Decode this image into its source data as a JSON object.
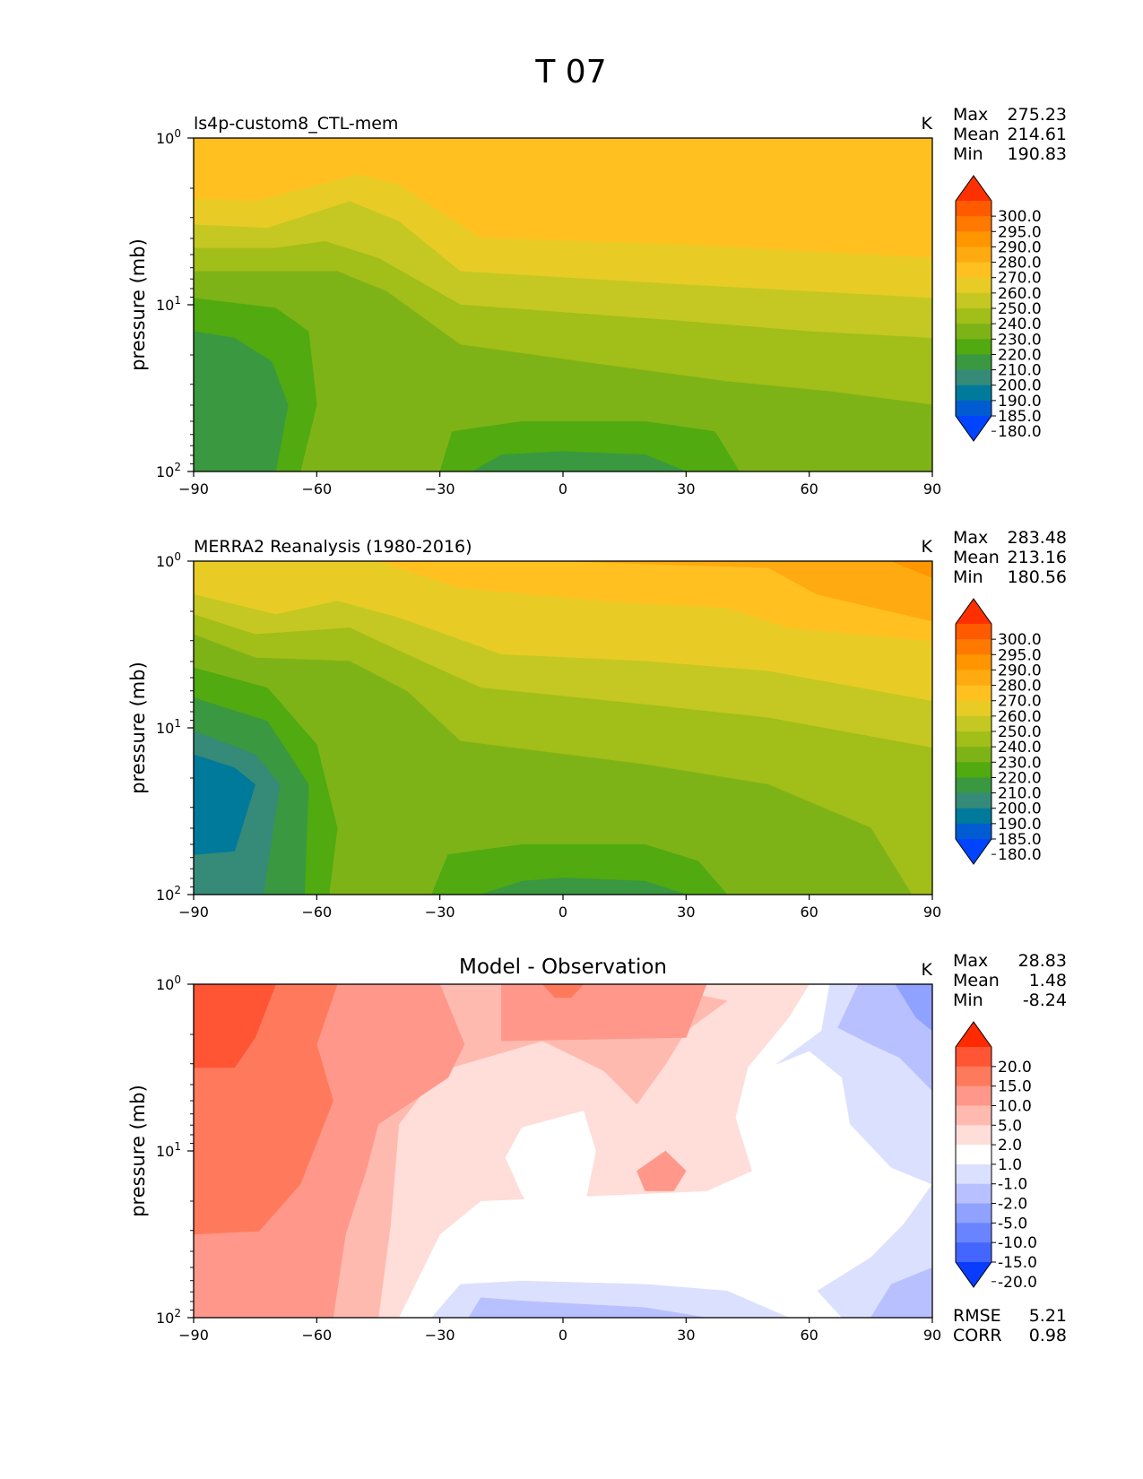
{
  "figure": {
    "title": "T 07"
  },
  "axes_text": {
    "ylabel": "pressure (mb)",
    "y_ticks": [
      {
        "base": "10",
        "exp": "0"
      },
      {
        "base": "10",
        "exp": "1"
      },
      {
        "base": "10",
        "exp": "2"
      }
    ]
  },
  "chart_data": [
    {
      "type": "heatmap",
      "panel": "model",
      "title": "ls4p-custom8_CTL-mem",
      "unit": "K",
      "xlabel": "",
      "ylabel": "pressure (mb)",
      "x_ticks": [
        -90,
        -60,
        -30,
        0,
        30,
        60,
        90
      ],
      "xlim": [
        -90,
        90
      ],
      "ylim_mb": [
        100,
        1
      ],
      "y_scale": "log",
      "stats": [
        {
          "label": "Max",
          "value": "275.23"
        },
        {
          "label": "Mean",
          "value": "214.61"
        },
        {
          "label": "Min",
          "value": "190.83"
        }
      ],
      "levels": [
        "300.0",
        "295.0",
        "290.0",
        "280.0",
        "270.0",
        "260.0",
        "250.0",
        "240.0",
        "230.0",
        "220.0",
        "210.0",
        "200.0",
        "190.0",
        "185.0",
        "180.0"
      ],
      "colors": [
        "#ff3000",
        "#ff5a00",
        "#ff7800",
        "#ff9600",
        "#ffaa10",
        "#ffc020",
        "#e8cc25",
        "#c5c822",
        "#a2be18",
        "#7eb318",
        "#50aa10",
        "#3a9840",
        "#368a78",
        "#007a9a",
        "#005cd0",
        "#0044ff"
      ]
    },
    {
      "type": "heatmap",
      "panel": "obs",
      "title": "MERRA2 Reanalysis (1980-2016)",
      "unit": "K",
      "xlabel": "",
      "ylabel": "pressure (mb)",
      "x_ticks": [
        -90,
        -60,
        -30,
        0,
        30,
        60,
        90
      ],
      "xlim": [
        -90,
        90
      ],
      "ylim_mb": [
        100,
        1
      ],
      "y_scale": "log",
      "stats": [
        {
          "label": "Max",
          "value": "283.48"
        },
        {
          "label": "Mean",
          "value": "213.16"
        },
        {
          "label": "Min",
          "value": "180.56"
        }
      ],
      "levels": [
        "300.0",
        "295.0",
        "290.0",
        "280.0",
        "270.0",
        "260.0",
        "250.0",
        "240.0",
        "230.0",
        "220.0",
        "210.0",
        "200.0",
        "190.0",
        "185.0",
        "180.0"
      ],
      "colors": [
        "#ff3000",
        "#ff5a00",
        "#ff7800",
        "#ff9600",
        "#ffaa10",
        "#ffc020",
        "#e8cc25",
        "#c5c822",
        "#a2be18",
        "#7eb318",
        "#50aa10",
        "#3a9840",
        "#368a78",
        "#007a9a",
        "#005cd0",
        "#0044ff"
      ]
    },
    {
      "type": "heatmap",
      "panel": "diff",
      "title": "Model - Observation",
      "unit": "K",
      "xlabel": "",
      "ylabel": "pressure (mb)",
      "x_ticks": [
        -90,
        -60,
        -30,
        0,
        30,
        60,
        90
      ],
      "xlim": [
        -90,
        90
      ],
      "ylim_mb": [
        100,
        1
      ],
      "y_scale": "log",
      "stats": [
        {
          "label": "Max",
          "value": "28.83"
        },
        {
          "label": "Mean",
          "value": "1.48"
        },
        {
          "label": "Min",
          "value": "-8.24"
        }
      ],
      "extra_stats": [
        {
          "label": "RMSE",
          "value": "5.21"
        },
        {
          "label": "CORR",
          "value": "0.98"
        }
      ],
      "levels": [
        "20.0",
        "15.0",
        "10.0",
        "5.0",
        "2.0",
        "1.0",
        "-1.0",
        "-2.0",
        "-5.0",
        "-10.0",
        "-15.0",
        "-20.0"
      ],
      "colors": [
        "#ff2a00",
        "#ff5535",
        "#ff7a5c",
        "#ff988a",
        "#ffbab0",
        "#ffddd8",
        "#ffffff",
        "#dbe0ff",
        "#b8c0ff",
        "#90a2ff",
        "#6a84ff",
        "#4266ff",
        "#0a3cff"
      ]
    }
  ]
}
